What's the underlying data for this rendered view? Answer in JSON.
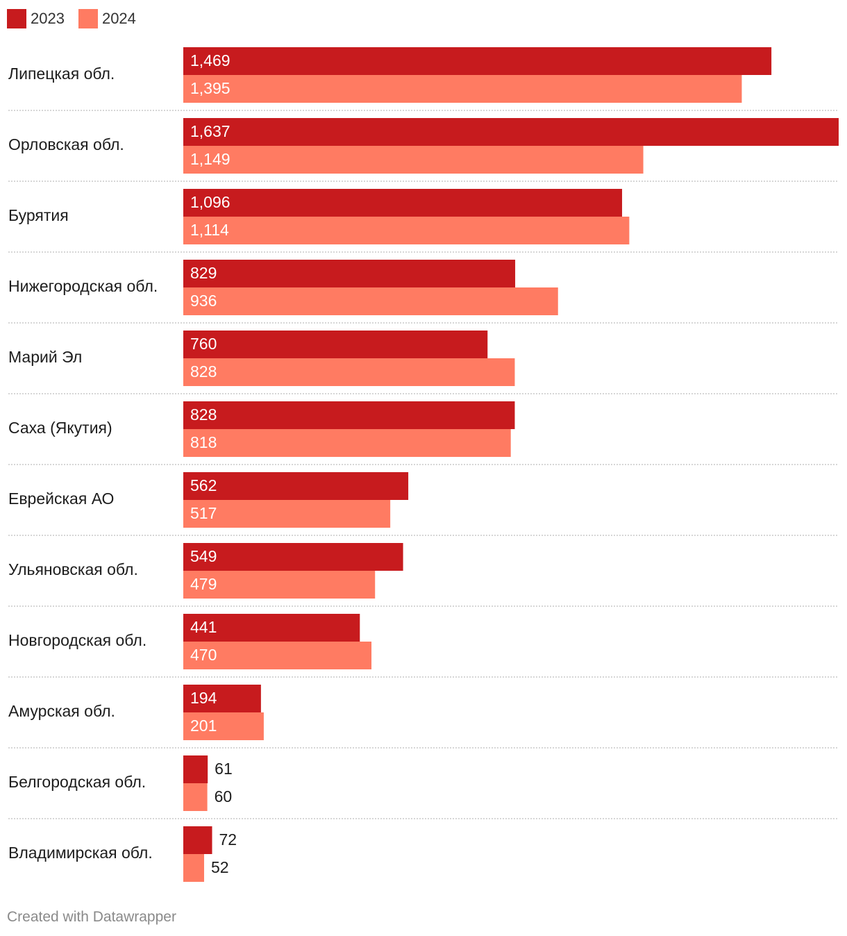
{
  "chart_data": {
    "type": "bar",
    "orientation": "horizontal",
    "categories": [
      "Липецкая обл.",
      "Орловская обл.",
      "Бурятия",
      "Нижегородская обл.",
      "Марий Эл",
      "Саха (Якутия)",
      "Еврейская АО",
      "Ульяновская обл.",
      "Новгородская обл.",
      "Амурская обл.",
      "Белгородская обл.",
      "Владимирская обл."
    ],
    "series": [
      {
        "name": "2023",
        "color": "#c71b1e",
        "values": [
          1469,
          1637,
          1096,
          829,
          760,
          828,
          562,
          549,
          441,
          194,
          61,
          72
        ],
        "labels": [
          "1,469",
          "1,637",
          "1,096",
          "829",
          "760",
          "828",
          "562",
          "549",
          "441",
          "194",
          "61",
          "72"
        ]
      },
      {
        "name": "2024",
        "color": "#ff7b62",
        "values": [
          1395,
          1149,
          1114,
          936,
          828,
          818,
          517,
          479,
          470,
          201,
          60,
          52
        ],
        "labels": [
          "1,395",
          "1,149",
          "1,114",
          "936",
          "828",
          "818",
          "517",
          "479",
          "470",
          "201",
          "60",
          "52"
        ]
      }
    ],
    "xlim": [
      0,
      1637
    ],
    "legend": "top-left",
    "title": "",
    "xlabel": "",
    "ylabel": ""
  },
  "legend": {
    "items": [
      {
        "label": "2023",
        "color": "#c71b1e"
      },
      {
        "label": "2024",
        "color": "#ff7b62"
      }
    ]
  },
  "footer": {
    "credit": "Created with Datawrapper"
  }
}
